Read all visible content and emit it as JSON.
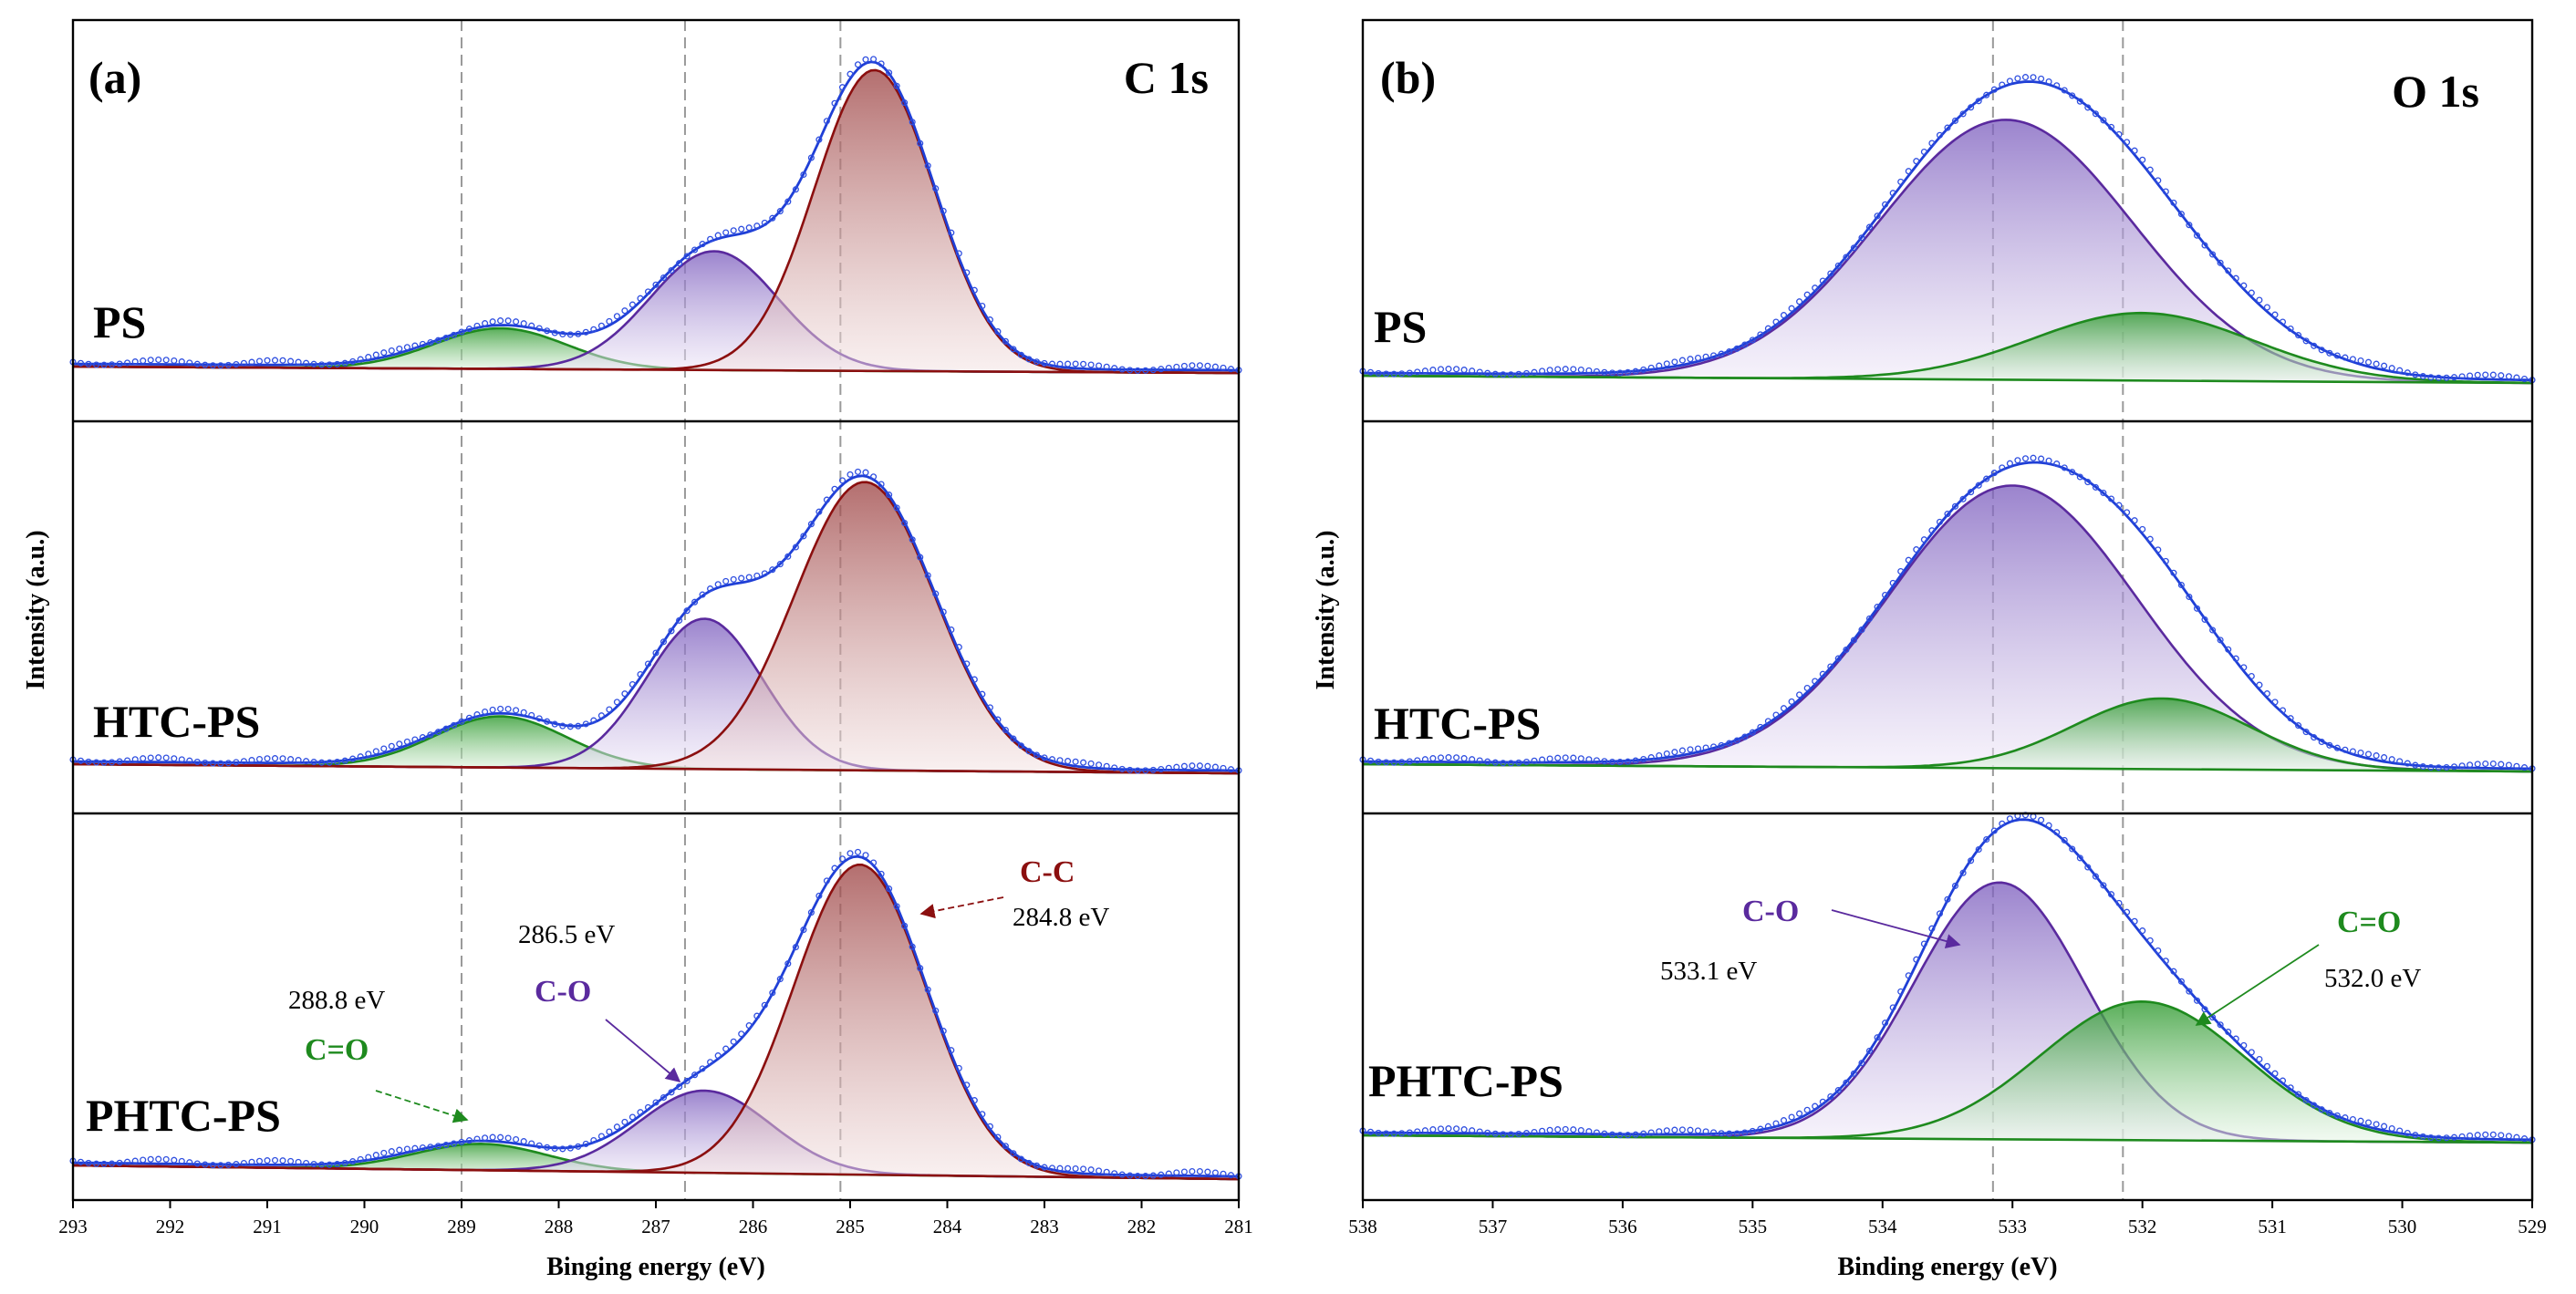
{
  "chart_data": [
    {
      "type": "line",
      "panel_label": "(a)",
      "corner_label": "C 1s",
      "xlabel": "Binging energy (eV)",
      "ylabel": "Intensity (a.u.)",
      "xlim": [
        293,
        281
      ],
      "x_ticks": [
        "293",
        "292",
        "291",
        "290",
        "289",
        "288",
        "287",
        "286",
        "285",
        "284",
        "283",
        "282",
        "281"
      ],
      "reference_lines": [
        289.0,
        286.7,
        285.1
      ],
      "samples": [
        {
          "name": "PS",
          "components": [
            {
              "label": "C=O",
              "center": 288.6,
              "height": 0.135,
              "fwhm": 1.6,
              "color": "#1e8a1e"
            },
            {
              "label": "C-O",
              "center": 286.4,
              "height": 0.395,
              "fwhm": 1.55,
              "color": "#5a2a9e"
            },
            {
              "label": "C-C",
              "center": 284.75,
              "height": 1.0,
              "fwhm": 1.45,
              "color": "#8b0f0f"
            }
          ]
        },
        {
          "name": "HTC-PS",
          "components": [
            {
              "label": "C=O",
              "center": 288.6,
              "height": 0.165,
              "fwhm": 1.6,
              "color": "#1e8a1e"
            },
            {
              "label": "C-O",
              "center": 286.5,
              "height": 0.485,
              "fwhm": 1.4,
              "color": "#5a2a9e"
            },
            {
              "label": "C-C",
              "center": 284.85,
              "height": 0.93,
              "fwhm": 1.7,
              "color": "#8b0f0f"
            }
          ]
        },
        {
          "name": "PHTC-PS",
          "components": [
            {
              "label": "C=O",
              "center": 288.8,
              "height": 0.085,
              "fwhm": 1.6,
              "color": "#1e8a1e"
            },
            {
              "label": "C-O",
              "center": 286.5,
              "height": 0.265,
              "fwhm": 1.6,
              "color": "#5a2a9e"
            },
            {
              "label": "C-C",
              "center": 284.9,
              "height": 1.0,
              "fwhm": 1.6,
              "color": "#8b0f0f"
            }
          ]
        }
      ],
      "annotations": [
        {
          "label": "C-C",
          "energy": "284.8 eV",
          "color": "#8b0f0f"
        },
        {
          "label": "C-O",
          "energy": "286.5 eV",
          "color": "#5a2a9e"
        },
        {
          "label": "C=O",
          "energy": "288.8 eV",
          "color": "#1e8a1e"
        }
      ]
    },
    {
      "type": "line",
      "panel_label": "(b)",
      "corner_label": "O 1s",
      "xlabel": "Binding energy (eV)",
      "ylabel": "Intensity (a.u.)",
      "xlim": [
        538,
        529
      ],
      "x_ticks": [
        "538",
        "537",
        "536",
        "535",
        "534",
        "533",
        "532",
        "531",
        "530",
        "529"
      ],
      "reference_lines": [
        533.15,
        532.15
      ],
      "samples": [
        {
          "name": "PS",
          "components": [
            {
              "label": "C-O",
              "center": 533.05,
              "height": 1.0,
              "fwhm": 2.3,
              "color": "#5a2a9e"
            },
            {
              "label": "C=O",
              "center": 532.0,
              "height": 0.26,
              "fwhm": 2.0,
              "color": "#1e8a1e"
            }
          ]
        },
        {
          "name": "HTC-PS",
          "components": [
            {
              "label": "C-O",
              "center": 533.0,
              "height": 1.0,
              "fwhm": 2.25,
              "color": "#5a2a9e"
            },
            {
              "label": "C=O",
              "center": 531.85,
              "height": 0.25,
              "fwhm": 1.6,
              "color": "#1e8a1e"
            }
          ]
        },
        {
          "name": "PHTC-PS",
          "components": [
            {
              "label": "C-O",
              "center": 533.1,
              "height": 0.88,
              "fwhm": 1.55,
              "color": "#5a2a9e"
            },
            {
              "label": "C=O",
              "center": 532.0,
              "height": 0.475,
              "fwhm": 1.85,
              "color": "#1e8a1e"
            }
          ]
        }
      ],
      "annotations": [
        {
          "label": "C-O",
          "energy": "533.1 eV",
          "color": "#5a2a9e"
        },
        {
          "label": "C=O",
          "energy": "532.0 eV",
          "color": "#1e8a1e"
        }
      ]
    }
  ],
  "colors": {
    "envelope": "#1f3fd6",
    "data_points": "#2f4fe0",
    "reference_lines": "#9a9a9a",
    "c_c": "#8b0f0f",
    "c_o": "#5a2a9e",
    "c_eq_o": "#1e8a1e"
  }
}
